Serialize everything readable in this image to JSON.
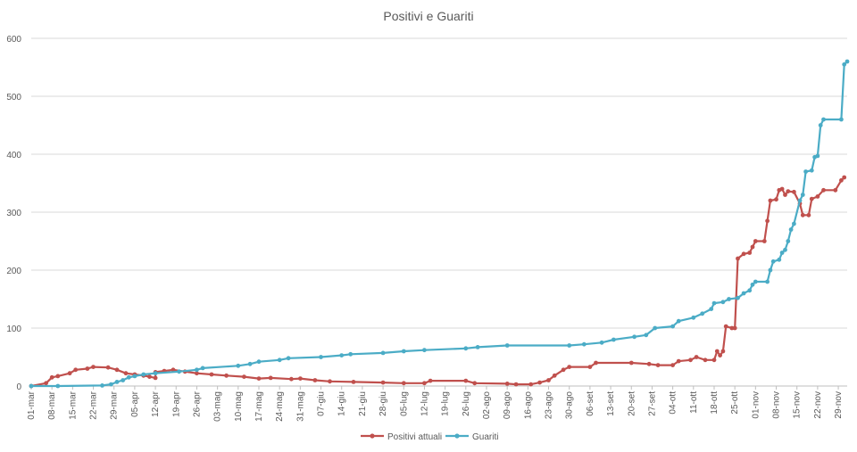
{
  "chart_data": {
    "type": "line",
    "title": "Positivi e Guariti",
    "xlabel": "",
    "ylabel": "",
    "ylim": [
      0,
      600
    ],
    "yticks": [
      0,
      100,
      200,
      300,
      400,
      500,
      600
    ],
    "grid": true,
    "legend_position": "bottom",
    "x_tick_labels": [
      "01-mar",
      "08-mar",
      "15-mar",
      "22-mar",
      "29-mar",
      "05-apr",
      "12-apr",
      "19-apr",
      "26-apr",
      "03-mag",
      "10-mag",
      "17-mag",
      "24-mag",
      "31-mag",
      "07-giu",
      "14-giu",
      "21-giu",
      "28-giu",
      "05-lug",
      "12-lug",
      "19-lug",
      "26-lug",
      "02-ago",
      "09-ago",
      "16-ago",
      "23-ago",
      "30-ago",
      "06-set",
      "13-set",
      "20-set",
      "27-set",
      "04-ott",
      "11-ott",
      "18-ott",
      "25-ott",
      "01-nov",
      "08-nov",
      "15-nov",
      "22-nov",
      "29-nov"
    ],
    "series": [
      {
        "name": "Positivi attuali",
        "color": "#c0504d",
        "points": [
          [
            "01-mar",
            0
          ],
          [
            "06-mar",
            5
          ],
          [
            "08-mar",
            15
          ],
          [
            "10-mar",
            17
          ],
          [
            "14-mar",
            22
          ],
          [
            "16-mar",
            28
          ],
          [
            "20-mar",
            30
          ],
          [
            "22-mar",
            33
          ],
          [
            "27-mar",
            32
          ],
          [
            "30-mar",
            28
          ],
          [
            "02-apr",
            22
          ],
          [
            "05-apr",
            20
          ],
          [
            "08-apr",
            18
          ],
          [
            "10-apr",
            16
          ],
          [
            "12-apr",
            14
          ],
          [
            "12-apr",
            24
          ],
          [
            "15-apr",
            26
          ],
          [
            "18-apr",
            28
          ],
          [
            "22-apr",
            25
          ],
          [
            "26-apr",
            22
          ],
          [
            "01-mag",
            20
          ],
          [
            "06-mag",
            18
          ],
          [
            "12-mag",
            16
          ],
          [
            "17-mag",
            13
          ],
          [
            "21-mag",
            14
          ],
          [
            "28-mag",
            12
          ],
          [
            "31-mag",
            13
          ],
          [
            "05-giu",
            10
          ],
          [
            "10-giu",
            8
          ],
          [
            "18-giu",
            7
          ],
          [
            "28-giu",
            6
          ],
          [
            "05-lug",
            5
          ],
          [
            "12-lug",
            5
          ],
          [
            "14-lug",
            9
          ],
          [
            "26-lug",
            9
          ],
          [
            "29-lug",
            5
          ],
          [
            "09-ago",
            4
          ],
          [
            "12-ago",
            3
          ],
          [
            "17-ago",
            3
          ],
          [
            "20-ago",
            6
          ],
          [
            "23-ago",
            10
          ],
          [
            "25-ago",
            18
          ],
          [
            "28-ago",
            28
          ],
          [
            "30-ago",
            33
          ],
          [
            "06-set",
            33
          ],
          [
            "08-set",
            40
          ],
          [
            "20-set",
            40
          ],
          [
            "26-set",
            38
          ],
          [
            "29-set",
            36
          ],
          [
            "04-ott",
            36
          ],
          [
            "06-ott",
            43
          ],
          [
            "10-ott",
            45
          ],
          [
            "12-ott",
            50
          ],
          [
            "15-ott",
            45
          ],
          [
            "18-ott",
            45
          ],
          [
            "19-ott",
            60
          ],
          [
            "20-ott",
            53
          ],
          [
            "21-ott",
            60
          ],
          [
            "22-ott",
            103
          ],
          [
            "24-ott",
            100
          ],
          [
            "25-ott",
            100
          ],
          [
            "26-ott",
            220
          ],
          [
            "28-ott",
            228
          ],
          [
            "30-ott",
            230
          ],
          [
            "31-ott",
            240
          ],
          [
            "01-nov",
            250
          ],
          [
            "04-nov",
            250
          ],
          [
            "05-nov",
            285
          ],
          [
            "06-nov",
            320
          ],
          [
            "08-nov",
            322
          ],
          [
            "09-nov",
            338
          ],
          [
            "10-nov",
            340
          ],
          [
            "11-nov",
            330
          ],
          [
            "12-nov",
            336
          ],
          [
            "14-nov",
            335
          ],
          [
            "16-nov",
            315
          ],
          [
            "17-nov",
            295
          ],
          [
            "19-nov",
            295
          ],
          [
            "20-nov",
            323
          ],
          [
            "22-nov",
            327
          ],
          [
            "24-nov",
            338
          ],
          [
            "28-nov",
            338
          ],
          [
            "30-nov",
            355
          ],
          [
            "01-dic",
            360
          ]
        ]
      },
      {
        "name": "Guariti",
        "color": "#4bacc6",
        "points": [
          [
            "01-mar",
            0
          ],
          [
            "10-mar",
            0
          ],
          [
            "25-mar",
            1
          ],
          [
            "28-mar",
            3
          ],
          [
            "30-mar",
            7
          ],
          [
            "01-apr",
            10
          ],
          [
            "03-apr",
            15
          ],
          [
            "05-apr",
            17
          ],
          [
            "08-apr",
            20
          ],
          [
            "12-apr",
            22
          ],
          [
            "20-apr",
            25
          ],
          [
            "26-apr",
            28
          ],
          [
            "28-apr",
            31
          ],
          [
            "10-mag",
            35
          ],
          [
            "14-mag",
            38
          ],
          [
            "17-mag",
            42
          ],
          [
            "24-mag",
            45
          ],
          [
            "27-mag",
            48
          ],
          [
            "07-giu",
            50
          ],
          [
            "14-giu",
            53
          ],
          [
            "17-giu",
            55
          ],
          [
            "28-giu",
            57
          ],
          [
            "05-lug",
            60
          ],
          [
            "12-lug",
            62
          ],
          [
            "26-lug",
            65
          ],
          [
            "30-lug",
            67
          ],
          [
            "09-ago",
            70
          ],
          [
            "30-ago",
            70
          ],
          [
            "04-set",
            72
          ],
          [
            "10-set",
            75
          ],
          [
            "14-set",
            80
          ],
          [
            "21-set",
            85
          ],
          [
            "25-set",
            88
          ],
          [
            "28-set",
            100
          ],
          [
            "04-ott",
            103
          ],
          [
            "06-ott",
            112
          ],
          [
            "11-ott",
            118
          ],
          [
            "14-ott",
            125
          ],
          [
            "17-ott",
            133
          ],
          [
            "18-ott",
            143
          ],
          [
            "21-ott",
            145
          ],
          [
            "23-ott",
            150
          ],
          [
            "26-ott",
            152
          ],
          [
            "28-ott",
            160
          ],
          [
            "30-ott",
            165
          ],
          [
            "31-ott",
            175
          ],
          [
            "01-nov",
            180
          ],
          [
            "05-nov",
            180
          ],
          [
            "06-nov",
            200
          ],
          [
            "07-nov",
            215
          ],
          [
            "09-nov",
            218
          ],
          [
            "10-nov",
            230
          ],
          [
            "11-nov",
            235
          ],
          [
            "12-nov",
            250
          ],
          [
            "13-nov",
            270
          ],
          [
            "14-nov",
            280
          ],
          [
            "16-nov",
            320
          ],
          [
            "17-nov",
            330
          ],
          [
            "18-nov",
            370
          ],
          [
            "20-nov",
            372
          ],
          [
            "21-nov",
            395
          ],
          [
            "22-nov",
            397
          ],
          [
            "23-nov",
            450
          ],
          [
            "24-nov",
            460
          ],
          [
            "30-nov",
            460
          ],
          [
            "01-dic",
            555
          ],
          [
            "02-dic",
            560
          ]
        ]
      }
    ]
  }
}
